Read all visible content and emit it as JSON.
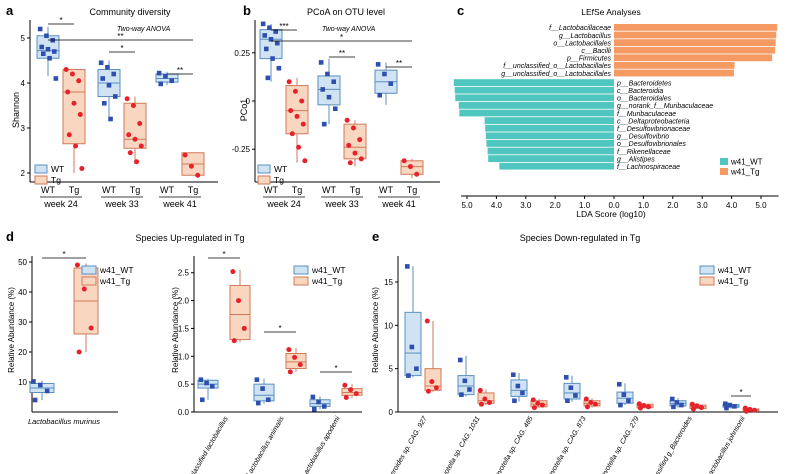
{
  "colors": {
    "wt_fill": "#cfe3f3",
    "wt_stroke": "#5a8fc0",
    "wt_point": "#2f4fb0",
    "tg_fill": "#f9d6bf",
    "tg_stroke": "#d07a5a",
    "tg_point": "#e8202a",
    "lefse_wt": "#4fc7c0",
    "lefse_tg": "#f59a62"
  },
  "chart_data": [
    {
      "panel": "a",
      "type": "box",
      "title": "Community diversity",
      "ylabel": "Shannon",
      "ylim": [
        1.8,
        5.4
      ],
      "yticks": [
        2,
        3,
        4,
        5
      ],
      "annotation": "Two-way ANOVA",
      "groups": [
        "week 24",
        "week 33",
        "week 41"
      ],
      "legend": [
        "WT",
        "Tg"
      ],
      "series": [
        {
          "name": "WT",
          "group": "week 24",
          "label": "WT",
          "box": [
            4.55,
            4.72,
            5.05
          ],
          "whisker": [
            4.15,
            5.25
          ],
          "points": [
            5.2,
            5.05,
            4.95,
            4.8,
            4.75,
            4.7,
            4.65,
            4.55,
            4.1
          ]
        },
        {
          "name": "Tg",
          "group": "week 24",
          "label": "Tg",
          "box": [
            2.65,
            3.8,
            4.3
          ],
          "whisker": [
            2.0,
            4.3
          ],
          "points": [
            4.3,
            4.2,
            4.05,
            3.8,
            3.55,
            3.3,
            2.85,
            2.6,
            2.1
          ]
        },
        {
          "name": "WT",
          "group": "week 33",
          "label": "WT",
          "box": [
            3.7,
            4.0,
            4.3
          ],
          "whisker": [
            3.2,
            4.5
          ],
          "points": [
            4.45,
            4.35,
            4.2,
            4.1,
            3.95,
            3.7,
            3.55,
            3.2
          ]
        },
        {
          "name": "Tg",
          "group": "week 33",
          "label": "Tg",
          "box": [
            2.55,
            2.75,
            3.55
          ],
          "whisker": [
            2.2,
            3.7
          ],
          "points": [
            3.65,
            3.5,
            3.1,
            2.85,
            2.75,
            2.6,
            2.45,
            2.25
          ]
        },
        {
          "name": "WT",
          "group": "week 41",
          "label": "WT",
          "box": [
            4.02,
            4.1,
            4.2
          ],
          "whisker": [
            3.95,
            4.25
          ],
          "points": [
            4.22,
            4.15,
            4.05,
            3.98
          ]
        },
        {
          "name": "Tg",
          "group": "week 41",
          "label": "Tg",
          "box": [
            1.95,
            2.2,
            2.45
          ],
          "whisker": [
            1.95,
            2.45
          ],
          "points": [
            2.4,
            2.15,
            1.95
          ]
        }
      ],
      "significance": [
        {
          "label": "*",
          "from": "week 24 WT",
          "to": "week 24 Tg"
        },
        {
          "label": "*",
          "from": "week 33 WT",
          "to": "week 33 Tg"
        },
        {
          "label": "**",
          "from": "week 24 WT",
          "to": "week 41 Tg"
        },
        {
          "label": "**",
          "from": "week 41 WT",
          "to": "week 41 Tg"
        }
      ]
    },
    {
      "panel": "b",
      "type": "box",
      "title": "PCoA on OTU level",
      "ylabel": "PCo1",
      "ylim": [
        -0.42,
        0.42
      ],
      "yticks": [
        "0.25",
        "0",
        "-0.25"
      ],
      "annotation": "Two-way ANOVA",
      "groups": [
        "week 24",
        "week 33",
        "week 41"
      ],
      "legend": [
        "WT",
        "Tg"
      ],
      "series": [
        {
          "name": "WT",
          "group": "week 24",
          "label": "WT",
          "box": [
            0.22,
            0.32,
            0.37
          ],
          "whisker": [
            0.1,
            0.4
          ],
          "points": [
            0.4,
            0.38,
            0.36,
            0.34,
            0.32,
            0.3,
            0.27,
            0.22,
            0.17,
            0.12
          ]
        },
        {
          "name": "Tg",
          "group": "week 24",
          "label": "Tg",
          "box": [
            -0.17,
            -0.05,
            0.08
          ],
          "whisker": [
            -0.32,
            0.12
          ],
          "points": [
            0.1,
            0.05,
            0.0,
            -0.05,
            -0.08,
            -0.12,
            -0.17,
            -0.24,
            -0.31
          ]
        },
        {
          "name": "WT",
          "group": "week 33",
          "label": "WT",
          "box": [
            -0.02,
            0.06,
            0.13
          ],
          "whisker": [
            -0.12,
            0.22
          ],
          "points": [
            0.2,
            0.14,
            0.1,
            0.06,
            0.02,
            -0.04,
            -0.12
          ]
        },
        {
          "name": "Tg",
          "group": "week 33",
          "label": "Tg",
          "box": [
            -0.3,
            -0.24,
            -0.12
          ],
          "whisker": [
            -0.34,
            -0.1
          ],
          "points": [
            -0.1,
            -0.14,
            -0.2,
            -0.23,
            -0.27,
            -0.3,
            -0.32
          ]
        },
        {
          "name": "WT",
          "group": "week 41",
          "label": "WT",
          "box": [
            0.04,
            0.1,
            0.16
          ],
          "whisker": [
            -0.02,
            0.2
          ],
          "points": [
            0.19,
            0.14,
            0.09,
            0.03
          ]
        },
        {
          "name": "Tg",
          "group": "week 41",
          "label": "Tg",
          "box": [
            -0.38,
            -0.34,
            -0.31
          ],
          "whisker": [
            -0.4,
            -0.3
          ],
          "points": [
            -0.31,
            -0.34,
            -0.38
          ]
        }
      ],
      "significance": [
        {
          "label": "***",
          "from": "week 24 WT",
          "to": "week 24 Tg"
        },
        {
          "label": "**",
          "from": "week 33 WT",
          "to": "week 33 Tg"
        },
        {
          "label": "*",
          "from": "week 24 WT",
          "to": "week 41 Tg"
        },
        {
          "label": "**",
          "from": "week 41 WT",
          "to": "week 41 Tg"
        }
      ]
    },
    {
      "panel": "c",
      "type": "bar",
      "title": "LEfSe Analyses",
      "xlabel": "LDA Score (log10)",
      "xticks": [
        "5.0",
        "4.0",
        "3.0",
        "2.0",
        "1.0",
        "0.0",
        "1.0",
        "2.0",
        "3.0",
        "4.0",
        "5.0"
      ],
      "legend": [
        "w41_WT",
        "w41_Tg"
      ],
      "series": [
        {
          "name": "w41_Tg",
          "categories": [
            "f__Lactobacillaceae",
            "g__Lactobacillus",
            "o__Lactobacillales",
            "c__Bacilli",
            "p__Firmicutes",
            "f__unclassified_o__Lactobacillales",
            "g__unclassified_o__Lactobacillales"
          ],
          "values": [
            5.55,
            5.52,
            5.5,
            5.48,
            5.38,
            4.1,
            4.08
          ]
        },
        {
          "name": "w41_WT",
          "categories": [
            "p__Bacteroidetes",
            "c__Bacteroidia",
            "o__Bacteroidales",
            "g__norank_f__Muribaculaceae",
            "f__Muribaculaceae",
            "c__Deltaproteobacteria",
            "f__Desulfovibrionaceae",
            "g__Desulfovibrio",
            "o__Desulfovibrionales",
            "f__Rikenellaceae",
            "g__Alistipes",
            "f__Lachnospiraceae"
          ],
          "values": [
            5.45,
            5.42,
            5.4,
            5.28,
            5.26,
            4.4,
            4.38,
            4.36,
            4.34,
            4.3,
            4.28,
            3.9
          ]
        }
      ]
    },
    {
      "panel": "d",
      "type": "box",
      "title": "Species Up-regulated in Tg",
      "ylabel": "Relative Abundance (%)",
      "legend": [
        "w41_WT",
        "w41_Tg"
      ],
      "subplots": [
        {
          "ylim": [
            0,
            52
          ],
          "yticks": [
            10,
            20,
            30,
            40,
            50
          ],
          "categories": [
            "Lactobacillus murinus"
          ],
          "series": [
            {
              "name": "w41_WT",
              "category": "Lactobacillus murinus",
              "box": [
                6.5,
                8.0,
                9.5
              ],
              "whisker": [
                4.0,
                10.5
              ],
              "points": [
                10.2,
                9.0,
                7.0,
                4.0
              ]
            },
            {
              "name": "w41_Tg",
              "category": "Lactobacillus murinus",
              "box": [
                26.0,
                37.0,
                48.0
              ],
              "whisker": [
                20.0,
                49.5
              ],
              "points": [
                49.0,
                41.0,
                28.0,
                20.0
              ]
            }
          ],
          "significance": [
            {
              "label": "*"
            }
          ]
        },
        {
          "ylim": [
            0,
            2.8
          ],
          "yticks": [
            "0.0",
            "0.5",
            "1.0",
            "1.5",
            "2.0",
            "2.5"
          ],
          "categories": [
            "Unclassified lactobacillus",
            "Lactobacillus animalis",
            "Lactobacillus apodemi"
          ],
          "series": [
            {
              "name": "w41_WT",
              "category": "Unclassified lactobacillus",
              "box": [
                0.43,
                0.5,
                0.57
              ],
              "whisker": [
                0.22,
                0.6
              ],
              "points": [
                0.58,
                0.52,
                0.46,
                0.22
              ]
            },
            {
              "name": "w41_Tg",
              "category": "Unclassified lactobacillus",
              "box": [
                1.3,
                1.75,
                2.27
              ],
              "whisker": [
                1.25,
                2.55
              ],
              "points": [
                2.52,
                2.0,
                1.5,
                1.28
              ]
            },
            {
              "name": "w41_WT",
              "category": "Lactobacillus animalis",
              "box": [
                0.2,
                0.3,
                0.5
              ],
              "whisker": [
                0.15,
                0.6
              ],
              "points": [
                0.58,
                0.42,
                0.22,
                0.16
              ]
            },
            {
              "name": "w41_Tg",
              "category": "Lactobacillus animalis",
              "box": [
                0.78,
                0.9,
                1.05
              ],
              "whisker": [
                0.72,
                1.15
              ],
              "points": [
                1.12,
                0.98,
                0.85,
                0.72
              ]
            },
            {
              "name": "w41_WT",
              "category": "Lactobacillus apodemi",
              "box": [
                0.1,
                0.15,
                0.22
              ],
              "whisker": [
                0.05,
                0.28
              ],
              "points": [
                0.27,
                0.18,
                0.1,
                0.05
              ]
            },
            {
              "name": "w41_Tg",
              "category": "Lactobacillus apodemi",
              "box": [
                0.3,
                0.35,
                0.42
              ],
              "whisker": [
                0.25,
                0.5
              ],
              "points": [
                0.48,
                0.4,
                0.33,
                0.26
              ]
            }
          ],
          "significance": [
            {
              "label": "*"
            },
            {
              "label": "*"
            },
            {
              "label": "*"
            }
          ]
        }
      ]
    },
    {
      "panel": "e",
      "type": "box",
      "title": "Species Down-regulated in Tg",
      "ylabel": "Relative Abundance (%)",
      "ylim": [
        0,
        18
      ],
      "yticks": [
        0,
        5,
        10,
        15
      ],
      "legend": [
        "w41_WT",
        "w41_Tg"
      ],
      "categories": [
        "Bacteroides sp. CAG. 927",
        "Prevotella sp. CAG. 1031",
        "Prevotella sp. CAG. 485",
        "Prevotella sp. CAG. 873",
        "Prevotella sp. CAG. 279",
        "Unclassified g_Bacteroides",
        "Lactobacillus johnsonii"
      ],
      "series": [
        {
          "name": "w41_WT",
          "category": "Bacteroides sp. CAG. 927",
          "box": [
            4.2,
            6.8,
            11.5
          ],
          "whisker": [
            4.0,
            16.8
          ],
          "points": [
            16.8,
            7.5,
            5.0,
            4.2
          ]
        },
        {
          "name": "w41_Tg",
          "category": "Bacteroides sp. CAG. 927",
          "box": [
            2.5,
            3.0,
            5.0
          ],
          "whisker": [
            2.3,
            10.5
          ],
          "points": [
            10.5,
            3.5,
            2.8,
            2.4
          ]
        },
        {
          "name": "w41_WT",
          "category": "Prevotella sp. CAG. 1031",
          "box": [
            2.0,
            3.0,
            4.2
          ],
          "whisker": [
            1.8,
            6.5
          ],
          "points": [
            6.0,
            3.6,
            2.6,
            2.0
          ]
        },
        {
          "name": "w41_Tg",
          "category": "Prevotella sp. CAG. 1031",
          "box": [
            1.0,
            1.3,
            2.2
          ],
          "whisker": [
            0.8,
            2.6
          ],
          "points": [
            2.5,
            1.5,
            1.1,
            0.9
          ]
        },
        {
          "name": "w41_WT",
          "category": "Prevotella sp. CAG. 485",
          "box": [
            1.8,
            2.5,
            3.7
          ],
          "whisker": [
            1.2,
            4.5
          ],
          "points": [
            4.3,
            3.0,
            2.2,
            1.3
          ]
        },
        {
          "name": "w41_Tg",
          "category": "Prevotella sp. CAG. 485",
          "box": [
            0.6,
            0.9,
            1.3
          ],
          "whisker": [
            0.5,
            1.5
          ],
          "points": [
            1.4,
            1.0,
            0.8,
            0.5
          ]
        },
        {
          "name": "w41_WT",
          "category": "Prevotella sp. CAG. 873",
          "box": [
            1.5,
            2.2,
            3.3
          ],
          "whisker": [
            1.2,
            4.2
          ],
          "points": [
            4.0,
            2.8,
            1.9,
            1.3
          ]
        },
        {
          "name": "w41_Tg",
          "category": "Prevotella sp. CAG. 873",
          "box": [
            0.7,
            1.0,
            1.3
          ],
          "whisker": [
            0.5,
            1.6
          ],
          "points": [
            1.5,
            1.1,
            0.9,
            0.6
          ]
        },
        {
          "name": "w41_WT",
          "category": "Prevotella sp. CAG. 279",
          "box": [
            1.0,
            1.6,
            2.3
          ],
          "whisker": [
            0.8,
            3.3
          ],
          "points": [
            3.2,
            2.0,
            1.3,
            0.8
          ]
        },
        {
          "name": "w41_Tg",
          "category": "Prevotella sp. CAG. 279",
          "box": [
            0.5,
            0.7,
            0.9
          ],
          "whisker": [
            0.4,
            1.0
          ],
          "points": [
            0.95,
            0.75,
            0.6,
            0.45
          ]
        },
        {
          "name": "w41_WT",
          "category": "Unclassified g_Bacteroides",
          "box": [
            0.7,
            1.0,
            1.3
          ],
          "whisker": [
            0.5,
            1.6
          ],
          "points": [
            1.5,
            1.1,
            0.8,
            0.6
          ]
        },
        {
          "name": "w41_Tg",
          "category": "Unclassified g_Bacteroides",
          "box": [
            0.4,
            0.6,
            0.8
          ],
          "whisker": [
            0.3,
            1.0
          ],
          "points": [
            0.9,
            0.7,
            0.5,
            0.35
          ]
        },
        {
          "name": "w41_WT",
          "category": "Lactobacillus johnsonii",
          "box": [
            0.55,
            0.7,
            0.85
          ],
          "whisker": [
            0.4,
            1.0
          ],
          "points": [
            0.95,
            0.8,
            0.65,
            0.45
          ]
        },
        {
          "name": "w41_Tg",
          "category": "Lactobacillus johnsonii",
          "box": [
            0.15,
            0.25,
            0.35
          ],
          "whisker": [
            0.05,
            0.45
          ],
          "points": [
            0.45,
            0.3,
            0.2,
            0.08
          ]
        }
      ],
      "significance": [
        {
          "label": "*",
          "category": "Lactobacillus johnsonii"
        }
      ]
    }
  ]
}
